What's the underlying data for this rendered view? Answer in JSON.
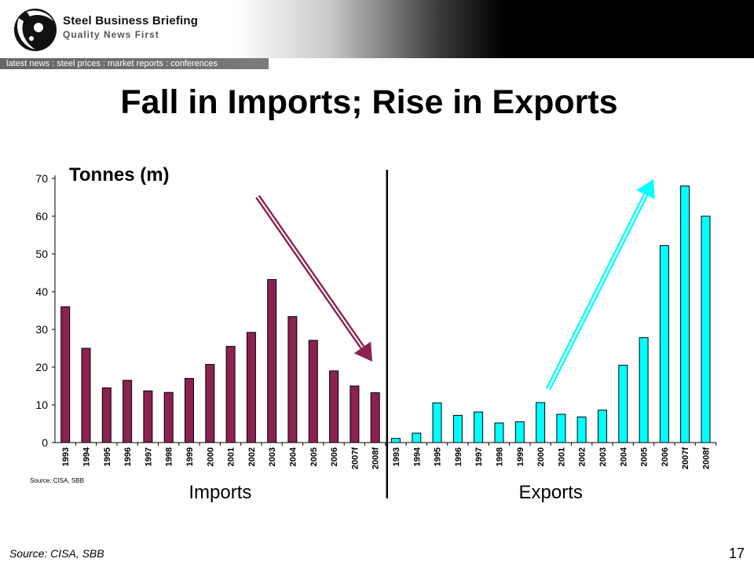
{
  "brand": {
    "name": "Steel Business Briefing",
    "tagline": "Quality News First"
  },
  "nav": {
    "text": "latest news : steel prices : market  reports : conferences"
  },
  "slide": {
    "title": "Fall in Imports; Rise in Exports",
    "page_number": "17",
    "source": "Source: CISA, SBB"
  },
  "colors": {
    "imports": "#8B2252",
    "exports": "#00FFFF"
  },
  "chart_data": {
    "type": "bar",
    "ylabel": "Tonnes (m)",
    "ylim": [
      0,
      70
    ],
    "yticks": [
      0,
      10,
      20,
      30,
      40,
      50,
      60,
      70
    ],
    "inner_source": "Source: CISA, SBB",
    "series": [
      {
        "name": "Imports",
        "categories": [
          "1993",
          "1994",
          "1995",
          "1996",
          "1997",
          "1998",
          "1999",
          "2000",
          "2001",
          "2002",
          "2003",
          "2004",
          "2005",
          "2006",
          "2007f",
          "2008f"
        ],
        "values": [
          36,
          25,
          14.5,
          16.5,
          13.7,
          13.3,
          17,
          20.7,
          25.5,
          29.2,
          43.2,
          33.4,
          27.1,
          19,
          15,
          13.2
        ]
      },
      {
        "name": "Exports",
        "categories": [
          "1993",
          "1994",
          "1995",
          "1996",
          "1997",
          "1998",
          "1999",
          "2000",
          "2001",
          "2002",
          "2003",
          "2004",
          "2005",
          "2006",
          "2007f",
          "2008f"
        ],
        "values": [
          1.1,
          2.5,
          10.5,
          7.2,
          8.1,
          5.2,
          5.5,
          10.6,
          7.5,
          6.8,
          8.6,
          20.5,
          27.8,
          52.2,
          68,
          60
        ]
      }
    ]
  }
}
